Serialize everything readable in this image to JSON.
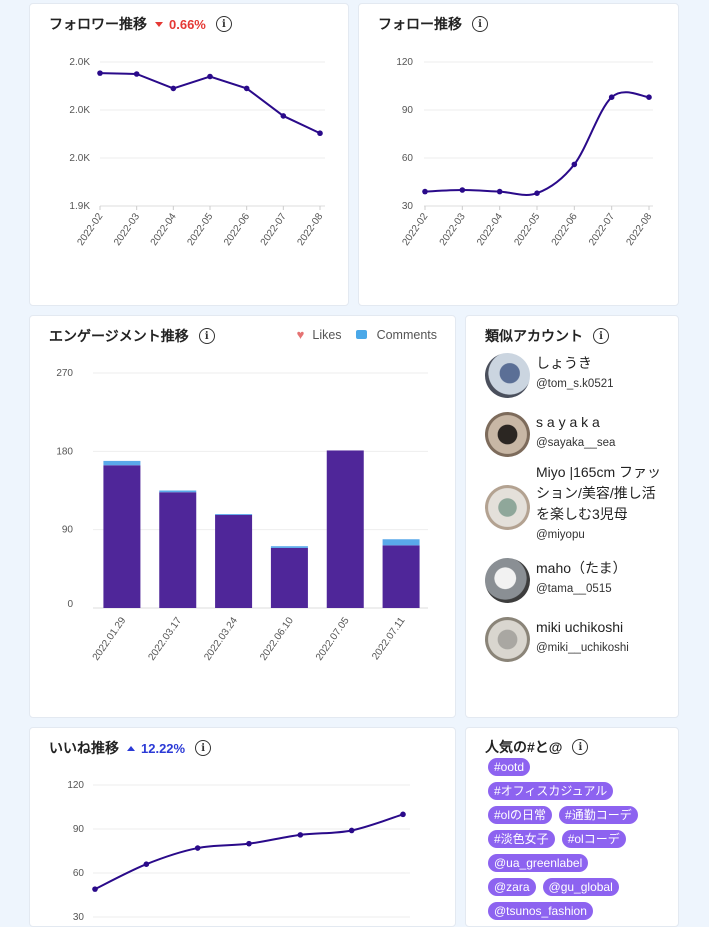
{
  "follower_card": {
    "title": "フォロワー推移",
    "delta": "0.66%",
    "delta_direction": "down",
    "info_icon": "info-icon"
  },
  "follow_card": {
    "title": "フォロー推移",
    "info_icon": "info-icon"
  },
  "engagement_card": {
    "title": "エンゲージメント推移",
    "legend_likes": "Likes",
    "legend_comments": "Comments",
    "legend_likes_icon": "heart-icon",
    "legend_comments_icon": "comment-icon"
  },
  "similar_card": {
    "title": "類似アカウント",
    "accounts": [
      {
        "name": "しょうき",
        "handle": "@tom_s.k0521"
      },
      {
        "name": "s a y a k a",
        "handle": "@sayaka__sea"
      },
      {
        "name": "Miyo |165cm ファッション/美容/推し活を楽しむ3児母",
        "handle": "@miyopu"
      },
      {
        "name": "maho（たま）",
        "handle": "@tama__0515"
      },
      {
        "name": "miki uchikoshi",
        "handle": "@miki__uchikoshi"
      }
    ]
  },
  "likes_card": {
    "title": "いいね推移",
    "delta": "12.22%",
    "delta_direction": "up"
  },
  "popular_card": {
    "title": "人気の#と@",
    "tags": [
      "#ootd",
      "#オフィスカジュアル",
      "#olの日常",
      "#通勤コーデ",
      "#淡色女子",
      "#olコーデ",
      "@ua_greenlabel",
      "@zara",
      "@gu_global",
      "@tsunos_fashion"
    ]
  },
  "colors": {
    "line": "#2a0a8a",
    "likes_bar": "#4f2699",
    "comments_bar": "#5aa9ea",
    "tag_bg": "#8d63f0",
    "delta_down": "#e53935",
    "delta_up": "#2b3ad6"
  },
  "chart_data": [
    {
      "id": "followers",
      "type": "line",
      "title": "フォロワー推移",
      "x": [
        "2022-02",
        "2022-03",
        "2022-04",
        "2022-05",
        "2022-06",
        "2022-07",
        "2022-08"
      ],
      "ytick_labels": [
        "1.9K",
        "2.0K",
        "2.0K",
        "2.0K"
      ],
      "ytick_values": [
        1.9,
        1.95,
        2.0,
        2.05
      ],
      "ylim": [
        1.9,
        2.05
      ],
      "values": [
        2.0384,
        2.0375,
        2.0225,
        2.0349,
        2.0225,
        1.9938,
        1.9758
      ],
      "grid": true
    },
    {
      "id": "follows",
      "type": "line",
      "title": "フォロー推移",
      "x": [
        "2022-02",
        "2022-03",
        "2022-04",
        "2022-05",
        "2022-06",
        "2022-07",
        "2022-08"
      ],
      "ytick_labels": [
        "30",
        "60",
        "90",
        "120"
      ],
      "ytick_values": [
        30,
        60,
        90,
        120
      ],
      "ylim": [
        30,
        120
      ],
      "values": [
        39,
        40,
        39,
        38,
        56,
        98,
        98
      ],
      "grid": true
    },
    {
      "id": "engagement",
      "type": "bar",
      "title": "エンゲージメント推移",
      "categories": [
        "2022.01.29",
        "2022.03.17",
        "2022.03.24",
        "2022.06.10",
        "2022.07.05",
        "2022.07.11"
      ],
      "ytick_labels": [
        "0",
        "90",
        "180",
        "270"
      ],
      "ytick_values": [
        0,
        90,
        180,
        270
      ],
      "ylim": [
        0,
        270
      ],
      "series": [
        {
          "name": "Likes",
          "values": [
            164,
            133,
            107,
            69,
            181,
            72
          ]
        },
        {
          "name": "Comments",
          "values": [
            5,
            2,
            1,
            2,
            0,
            7
          ]
        }
      ],
      "legend": "top-right",
      "grid": true
    },
    {
      "id": "likes",
      "type": "line",
      "title": "いいね推移",
      "ytick_labels": [
        "30",
        "60",
        "90",
        "120"
      ],
      "ytick_values": [
        30,
        60,
        90,
        120
      ],
      "ylim": [
        30,
        120
      ],
      "values": [
        49,
        66,
        77,
        80,
        86,
        89,
        100
      ],
      "grid": true
    }
  ]
}
